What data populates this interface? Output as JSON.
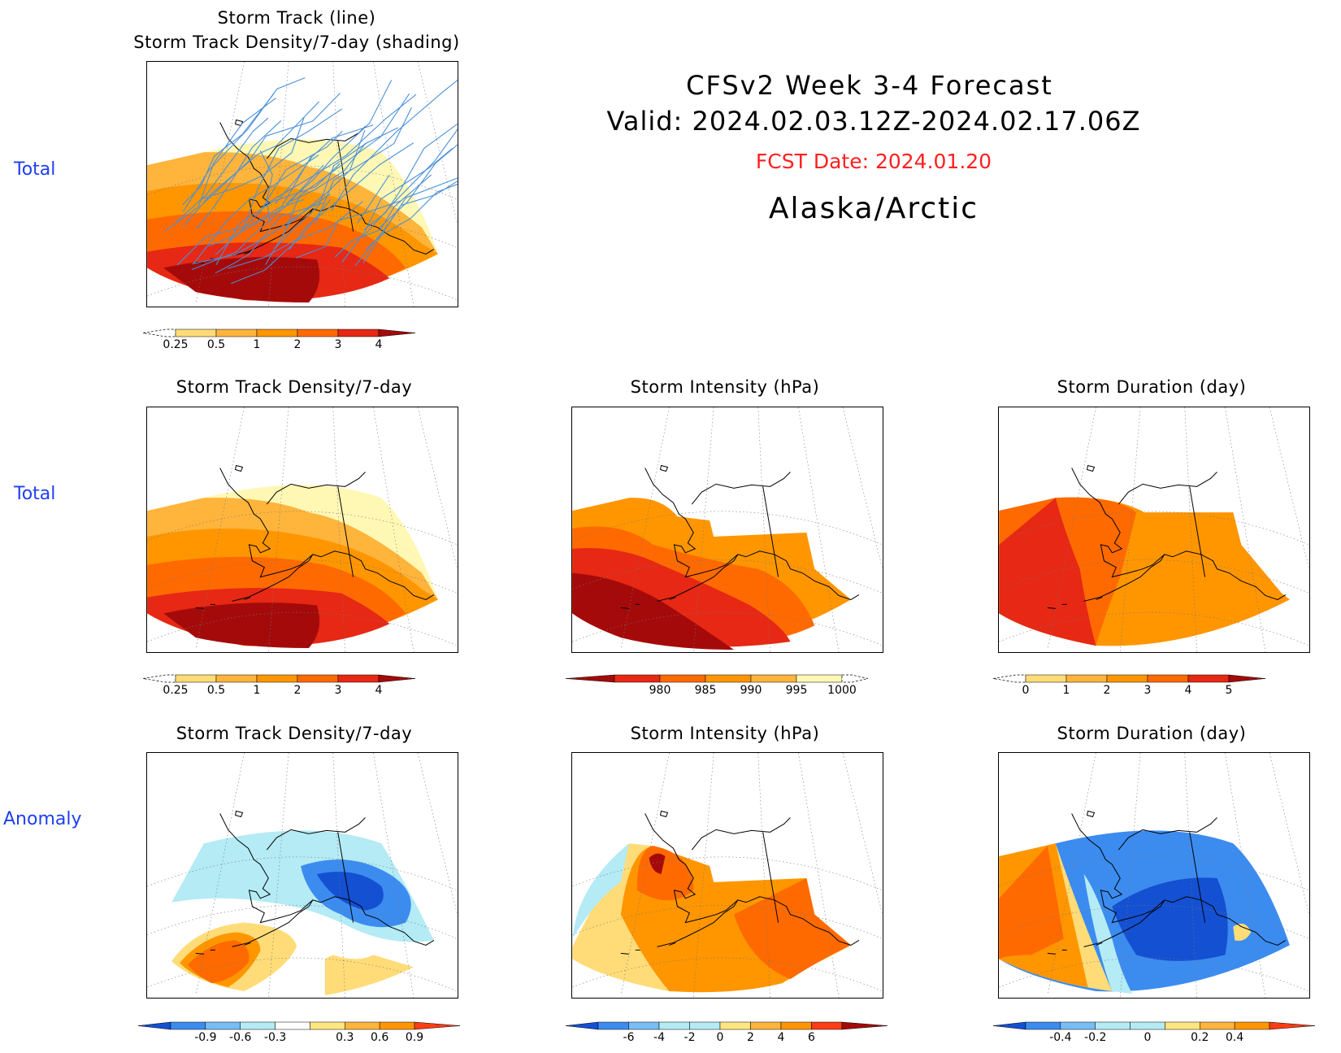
{
  "header": {
    "line1": "CFSv2 Week 3-4 Forecast",
    "line2": "Valid: 2024.02.03.12Z-2024.02.17.06Z",
    "fcst_date": "FCST Date: 2024.01.20",
    "region": "Alaska/Arctic",
    "fcst_color": "#ff2020"
  },
  "row_labels": [
    "Total",
    "Total",
    "Anomaly"
  ],
  "panels": {
    "top_left": {
      "title1": "Storm Track (line)",
      "title2": "Storm Track Density/7-day (shading)"
    },
    "r2c1": {
      "title": "Storm Track Density/7-day"
    },
    "r2c2": {
      "title": "Storm Intensity (hPa)"
    },
    "r2c3": {
      "title": "Storm Duration (day)"
    },
    "r3c1": {
      "title": "Storm Track Density/7-day"
    },
    "r3c2": {
      "title": "Storm Intensity (hPa)"
    },
    "r3c3": {
      "title": "Storm Duration (day)"
    }
  },
  "colorbars": {
    "density_total": {
      "labels": [
        "0.25",
        "0.5",
        "1",
        "2",
        "3",
        "4"
      ],
      "colors": [
        "#fff8b4",
        "#ffdc78",
        "#ffb43c",
        "#ff9600",
        "#ff6a00",
        "#e62814",
        "#a50a0a"
      ]
    },
    "intensity_total": {
      "labels": [
        "980",
        "985",
        "990",
        "995",
        "1000"
      ],
      "colors": [
        "#a50a0a",
        "#e62814",
        "#ff6a00",
        "#ff9600",
        "#ffb43c",
        "#fff8b4"
      ]
    },
    "duration_total": {
      "labels": [
        "0",
        "1",
        "2",
        "3",
        "4",
        "5"
      ],
      "colors": [
        "#fff8b4",
        "#ffdc78",
        "#ffb43c",
        "#ff9600",
        "#ff6a00",
        "#e62814",
        "#a50a0a"
      ]
    },
    "density_anom": {
      "labels": [
        "-0.9",
        "-0.6",
        "-0.3",
        "0.3",
        "0.6",
        "0.9"
      ],
      "colors": [
        "#1450d2",
        "#3c8cf0",
        "#78bef5",
        "#b4ebf5",
        "#ffffff",
        "#ffe680",
        "#ffb43c",
        "#ff9600",
        "#ff3c14"
      ]
    },
    "intensity_anom": {
      "labels": [
        "-6",
        "-4",
        "-2",
        "0",
        "2",
        "4",
        "6"
      ],
      "colors": [
        "#1450d2",
        "#3c8cf0",
        "#78bef5",
        "#b4ebf5",
        "#b4ebf5",
        "#ffe680",
        "#ffb43c",
        "#ff9600",
        "#ff3c14",
        "#a50a0a"
      ]
    },
    "duration_anom": {
      "labels": [
        "-0.4",
        "-0.2",
        "0",
        "0.2",
        "0.4"
      ],
      "colors": [
        "#1450d2",
        "#3c8cf0",
        "#78bef5",
        "#b4ebf5",
        "#b4ebf5",
        "#ffe680",
        "#ffb43c",
        "#ff9600",
        "#ff3c14"
      ]
    }
  },
  "colors": {
    "yellow_light": "#fff8b4",
    "yellow": "#ffdc78",
    "orange_light": "#ffb43c",
    "orange": "#ff9600",
    "orange_red": "#ff6a00",
    "red": "#e62814",
    "dark_red": "#a50a0a",
    "blue_light": "#b4ebf5",
    "blue_mid": "#78bef5",
    "blue": "#3c8cf0",
    "blue_dark": "#1450d2",
    "track_line": "#4a90d9"
  }
}
